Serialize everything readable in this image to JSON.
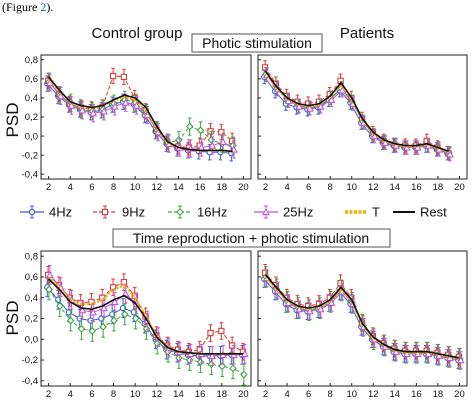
{
  "caption": {
    "prefix": "(Figure ",
    "link": "2",
    "suffix": ")."
  },
  "chart_data": {
    "type": "line",
    "sections": [
      "Photic stimulation",
      "Time reproduction + photic stimulation"
    ],
    "columns": [
      "Control group",
      "Patients"
    ],
    "ylabel": "PSD",
    "x_ticks": [
      2,
      4,
      6,
      8,
      10,
      12,
      14,
      16,
      18,
      20
    ],
    "y_ticks": [
      "-0,4",
      "-0,2",
      "0,0",
      "0,2",
      "0,4",
      "0,6",
      "0,8"
    ],
    "ylim": [
      -0.45,
      0.85
    ],
    "xlim": [
      1.3,
      20.7
    ],
    "legend": [
      {
        "key": "4Hz",
        "label": "4Hz",
        "color": "#3b5fd6",
        "marker": "circle",
        "style": "solid"
      },
      {
        "key": "9Hz",
        "label": "9Hz",
        "color": "#d83a3a",
        "marker": "square",
        "style": "dashed"
      },
      {
        "key": "16Hz",
        "label": "16Hz",
        "color": "#3fa63f",
        "marker": "diamond",
        "style": "dashed"
      },
      {
        "key": "25Hz",
        "label": "25Hz",
        "color": "#c455d8",
        "marker": "triangle",
        "style": "solid"
      },
      {
        "key": "T",
        "label": "T",
        "color": "#f0b400",
        "marker": "none",
        "style": "dotted"
      },
      {
        "key": "Rest",
        "label": "Rest",
        "color": "#111111",
        "marker": "none",
        "style": "solid"
      }
    ],
    "panels": [
      {
        "section": 0,
        "column": 0,
        "x": [
          2,
          3,
          4,
          5,
          6,
          7,
          8,
          9,
          10,
          11,
          12,
          13,
          14,
          15,
          16,
          17,
          18,
          19
        ],
        "series": [
          {
            "key": "Rest",
            "values": [
              0.62,
              0.48,
              0.36,
              0.32,
              0.3,
              0.32,
              0.38,
              0.43,
              0.4,
              0.3,
              0.1,
              -0.06,
              -0.12,
              -0.14,
              -0.15,
              -0.15,
              -0.15,
              -0.16
            ]
          },
          {
            "key": "T",
            "values": [
              0.6,
              0.47,
              0.35,
              0.31,
              0.3,
              0.32,
              0.37,
              0.41,
              0.38,
              0.28,
              0.08,
              -0.07,
              -0.12,
              -0.14,
              -0.15,
              -0.15,
              -0.15,
              -0.16
            ]
          },
          {
            "key": "4Hz",
            "values": [
              0.55,
              0.42,
              0.33,
              0.28,
              0.25,
              0.27,
              0.33,
              0.36,
              0.33,
              0.22,
              0.05,
              -0.08,
              -0.13,
              -0.15,
              -0.16,
              -0.17,
              -0.17,
              -0.18
            ],
            "err": 0.08
          },
          {
            "key": "9Hz",
            "values": [
              0.58,
              0.44,
              0.34,
              0.3,
              0.28,
              0.3,
              0.63,
              0.62,
              0.4,
              0.26,
              0.07,
              -0.06,
              -0.11,
              -0.12,
              -0.1,
              0.05,
              0.04,
              -0.05
            ],
            "err": 0.08
          },
          {
            "key": "16Hz",
            "values": [
              0.57,
              0.43,
              0.35,
              0.28,
              0.26,
              0.28,
              0.34,
              0.38,
              0.35,
              0.24,
              0.06,
              -0.07,
              -0.04,
              0.1,
              0.06,
              -0.04,
              -0.08,
              -0.1
            ],
            "err": 0.09
          },
          {
            "key": "25Hz",
            "values": [
              0.56,
              0.42,
              0.32,
              0.27,
              0.24,
              0.26,
              0.31,
              0.35,
              0.32,
              0.22,
              0.04,
              -0.08,
              -0.12,
              -0.13,
              -0.12,
              -0.1,
              -0.06,
              -0.14
            ],
            "err": 0.09
          }
        ]
      },
      {
        "section": 0,
        "column": 1,
        "x": [
          2,
          3,
          4,
          5,
          6,
          7,
          8,
          9,
          10,
          11,
          12,
          13,
          14,
          15,
          16,
          17,
          18,
          19
        ],
        "series": [
          {
            "key": "Rest",
            "values": [
              0.68,
              0.52,
              0.4,
              0.34,
              0.32,
              0.34,
              0.42,
              0.56,
              0.4,
              0.18,
              0.04,
              -0.04,
              -0.08,
              -0.1,
              -0.1,
              -0.08,
              -0.12,
              -0.16
            ]
          },
          {
            "key": "T",
            "values": [
              0.66,
              0.51,
              0.39,
              0.33,
              0.31,
              0.33,
              0.41,
              0.54,
              0.39,
              0.17,
              0.03,
              -0.05,
              -0.09,
              -0.11,
              -0.11,
              -0.09,
              -0.13,
              -0.17
            ]
          },
          {
            "key": "4Hz",
            "values": [
              0.62,
              0.47,
              0.34,
              0.3,
              0.28,
              0.3,
              0.38,
              0.48,
              0.35,
              0.14,
              0.0,
              -0.07,
              -0.1,
              -0.12,
              -0.12,
              -0.1,
              -0.14,
              -0.18
            ],
            "err": 0.07
          },
          {
            "key": "9Hz",
            "values": [
              0.72,
              0.55,
              0.42,
              0.36,
              0.34,
              0.36,
              0.44,
              0.58,
              0.4,
              0.18,
              0.03,
              -0.05,
              -0.09,
              -0.1,
              -0.1,
              -0.05,
              -0.12,
              -0.18
            ],
            "err": 0.07
          },
          {
            "key": "16Hz",
            "values": [
              0.65,
              0.5,
              0.38,
              0.32,
              0.3,
              0.32,
              0.4,
              0.5,
              0.36,
              0.15,
              0.01,
              -0.06,
              -0.09,
              -0.12,
              -0.12,
              -0.1,
              -0.13,
              -0.18
            ],
            "err": 0.07
          },
          {
            "key": "25Hz",
            "values": [
              0.64,
              0.49,
              0.37,
              0.31,
              0.29,
              0.31,
              0.38,
              0.48,
              0.34,
              0.14,
              0.0,
              -0.07,
              -0.1,
              -0.12,
              -0.12,
              -0.1,
              -0.14,
              -0.19
            ],
            "err": 0.07
          }
        ]
      },
      {
        "section": 1,
        "column": 0,
        "x": [
          2,
          3,
          4,
          5,
          6,
          7,
          8,
          9,
          10,
          11,
          12,
          13,
          14,
          15,
          16,
          17,
          18,
          19,
          20
        ],
        "series": [
          {
            "key": "Rest",
            "values": [
              0.58,
              0.48,
              0.36,
              0.3,
              0.29,
              0.32,
              0.38,
              0.42,
              0.35,
              0.2,
              0.02,
              -0.08,
              -0.12,
              -0.13,
              -0.14,
              -0.14,
              -0.14,
              -0.14,
              -0.14
            ]
          },
          {
            "key": "T",
            "values": [
              0.6,
              0.5,
              0.38,
              0.34,
              0.34,
              0.38,
              0.48,
              0.52,
              0.4,
              0.22,
              0.03,
              -0.07,
              -0.12,
              -0.13,
              -0.14,
              -0.14,
              -0.14,
              -0.14,
              -0.14
            ]
          },
          {
            "key": "4Hz",
            "values": [
              0.5,
              0.38,
              0.26,
              0.2,
              0.18,
              0.2,
              0.24,
              0.3,
              0.26,
              0.15,
              0.0,
              -0.1,
              -0.13,
              -0.15,
              -0.16,
              -0.16,
              -0.16,
              -0.15,
              -0.15
            ],
            "err": 0.09
          },
          {
            "key": "9Hz",
            "values": [
              0.62,
              0.52,
              0.4,
              0.35,
              0.36,
              0.4,
              0.5,
              0.55,
              0.42,
              0.22,
              0.04,
              -0.06,
              -0.1,
              -0.12,
              -0.1,
              0.06,
              0.08,
              -0.06,
              -0.12
            ],
            "err": 0.08
          },
          {
            "key": "16Hz",
            "values": [
              0.48,
              0.32,
              0.18,
              0.1,
              0.08,
              0.12,
              0.18,
              0.24,
              0.2,
              0.1,
              -0.04,
              -0.12,
              -0.18,
              -0.2,
              -0.22,
              -0.24,
              -0.26,
              -0.28,
              -0.34
            ],
            "err": 0.1
          },
          {
            "key": "25Hz",
            "values": [
              0.62,
              0.5,
              0.38,
              0.28,
              0.26,
              0.3,
              0.36,
              0.44,
              0.34,
              0.18,
              0.02,
              -0.08,
              -0.12,
              -0.14,
              -0.14,
              -0.16,
              -0.15,
              -0.15,
              -0.14
            ],
            "err": 0.09
          }
        ]
      },
      {
        "section": 1,
        "column": 1,
        "x": [
          2,
          3,
          4,
          5,
          6,
          7,
          8,
          9,
          10,
          11,
          12,
          13,
          14,
          15,
          16,
          17,
          18,
          19,
          20
        ],
        "series": [
          {
            "key": "Rest",
            "values": [
              0.62,
              0.5,
              0.38,
              0.32,
              0.3,
              0.32,
              0.38,
              0.5,
              0.38,
              0.15,
              0.02,
              -0.05,
              -0.1,
              -0.12,
              -0.12,
              -0.12,
              -0.14,
              -0.16,
              -0.18
            ]
          },
          {
            "key": "T",
            "values": [
              0.6,
              0.48,
              0.37,
              0.31,
              0.29,
              0.31,
              0.37,
              0.48,
              0.37,
              0.14,
              0.01,
              -0.06,
              -0.11,
              -0.13,
              -0.13,
              -0.13,
              -0.15,
              -0.17,
              -0.19
            ]
          },
          {
            "key": "4Hz",
            "values": [
              0.58,
              0.46,
              0.34,
              0.28,
              0.27,
              0.29,
              0.35,
              0.46,
              0.34,
              0.12,
              0.0,
              -0.07,
              -0.12,
              -0.14,
              -0.14,
              -0.14,
              -0.16,
              -0.18,
              -0.2
            ],
            "err": 0.08
          },
          {
            "key": "9Hz",
            "values": [
              0.64,
              0.52,
              0.4,
              0.34,
              0.32,
              0.34,
              0.4,
              0.54,
              0.4,
              0.16,
              0.03,
              -0.04,
              -0.09,
              -0.11,
              -0.11,
              -0.11,
              -0.13,
              -0.15,
              -0.17
            ],
            "err": 0.08
          },
          {
            "key": "16Hz",
            "values": [
              0.6,
              0.48,
              0.36,
              0.3,
              0.28,
              0.3,
              0.36,
              0.47,
              0.35,
              0.13,
              0.0,
              -0.06,
              -0.11,
              -0.13,
              -0.13,
              -0.13,
              -0.15,
              -0.17,
              -0.19
            ],
            "err": 0.1
          },
          {
            "key": "25Hz",
            "values": [
              0.59,
              0.47,
              0.35,
              0.29,
              0.27,
              0.29,
              0.35,
              0.46,
              0.34,
              0.12,
              0.0,
              -0.07,
              -0.12,
              -0.14,
              -0.14,
              -0.14,
              -0.16,
              -0.18,
              -0.2
            ],
            "err": 0.08
          }
        ]
      }
    ]
  }
}
